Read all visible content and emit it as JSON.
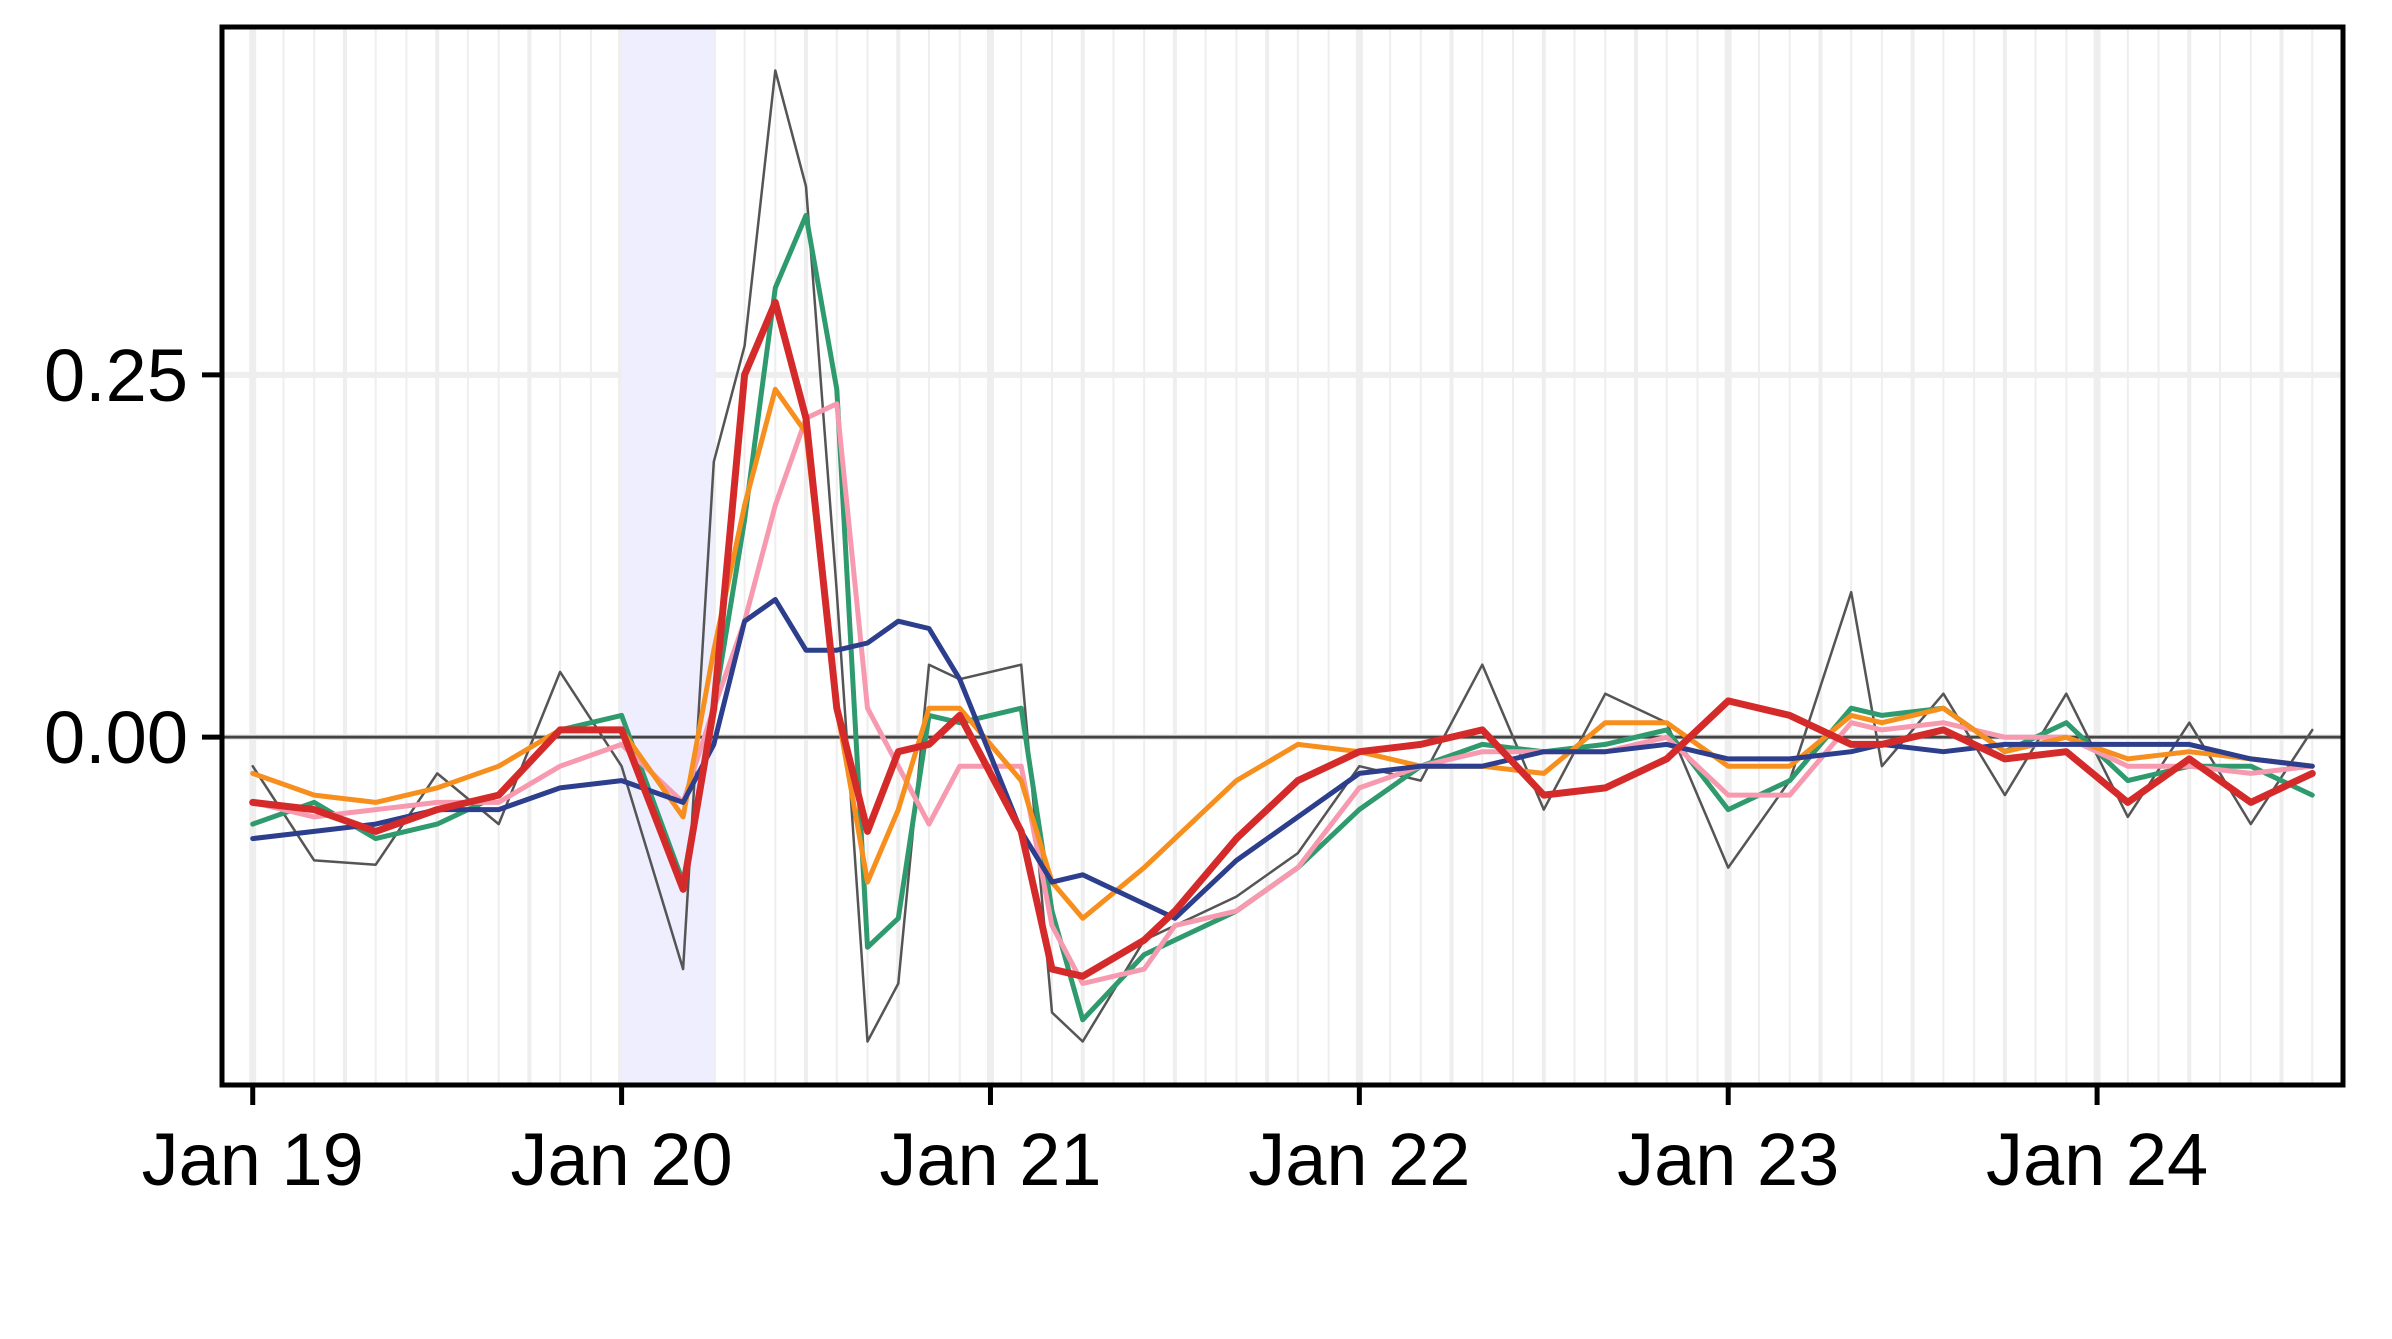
{
  "chart_data": {
    "type": "line",
    "title": "",
    "xlabel": "",
    "ylabel": "",
    "x_ticks": [
      "Jan 19",
      "Jan 20",
      "Jan 21",
      "Jan 22",
      "Jan 23",
      "Jan 24"
    ],
    "y_ticks": [
      "0.00",
      "0.25"
    ],
    "xlim": [
      "2018-12-01",
      "2024-09-01"
    ],
    "ylim": [
      -0.24,
      0.49
    ],
    "grid": true,
    "legend": "none",
    "reference_line": {
      "y": 0,
      "color": "#444444"
    },
    "shaded_region": {
      "x": [
        "2020-01-01",
        "2020-04-01"
      ],
      "color": "#eeeeff"
    },
    "series": [
      {
        "color": "#555555",
        "width": 2.5,
        "x": [
          "2019-01-01",
          "2019-03-01",
          "2019-05-01",
          "2019-07-01",
          "2019-09-01",
          "2019-11-01",
          "2020-01-01",
          "2020-03-01",
          "2020-04-01",
          "2020-05-01",
          "2020-06-01",
          "2020-07-01",
          "2020-08-01",
          "2020-09-01",
          "2020-10-01",
          "2020-11-01",
          "2020-12-01",
          "2021-02-01",
          "2021-03-01",
          "2021-04-01",
          "2021-06-01",
          "2021-07-01",
          "2021-09-01",
          "2021-11-01",
          "2022-01-01",
          "2022-03-01",
          "2022-05-01",
          "2022-07-01",
          "2022-09-01",
          "2022-11-01",
          "2023-01-01",
          "2023-03-01",
          "2023-05-01",
          "2023-06-01",
          "2023-08-01",
          "2023-10-01",
          "2023-12-01",
          "2024-02-01",
          "2024-04-01",
          "2024-06-01",
          "2024-08-01"
        ],
        "values": [
          -0.02,
          -0.085,
          -0.088,
          -0.025,
          -0.06,
          0.045,
          -0.02,
          -0.16,
          0.19,
          0.27,
          0.46,
          0.38,
          0.1,
          -0.21,
          -0.17,
          0.05,
          0.04,
          0.05,
          -0.19,
          -0.21,
          -0.14,
          -0.13,
          -0.11,
          -0.08,
          -0.02,
          -0.03,
          0.05,
          -0.05,
          0.03,
          0.01,
          -0.09,
          -0.03,
          0.1,
          -0.02,
          0.03,
          -0.04,
          0.03,
          -0.055,
          0.01,
          -0.06,
          0.005
        ]
      },
      {
        "color": "#2e9a6e",
        "width": 5,
        "x": [
          "2019-01-01",
          "2019-03-01",
          "2019-05-01",
          "2019-07-01",
          "2019-09-01",
          "2019-11-01",
          "2020-01-01",
          "2020-03-01",
          "2020-04-01",
          "2020-05-01",
          "2020-06-01",
          "2020-07-01",
          "2020-08-01",
          "2020-09-01",
          "2020-10-01",
          "2020-11-01",
          "2020-12-01",
          "2021-02-01",
          "2021-03-01",
          "2021-04-01",
          "2021-06-01",
          "2021-07-01",
          "2021-09-01",
          "2021-11-01",
          "2022-01-01",
          "2022-03-01",
          "2022-05-01",
          "2022-07-01",
          "2022-09-01",
          "2022-11-01",
          "2023-01-01",
          "2023-03-01",
          "2023-05-01",
          "2023-06-01",
          "2023-08-01",
          "2023-10-01",
          "2023-12-01",
          "2024-02-01",
          "2024-04-01",
          "2024-06-01",
          "2024-08-01"
        ],
        "values": [
          -0.06,
          -0.045,
          -0.07,
          -0.06,
          -0.04,
          0.005,
          0.015,
          -0.1,
          0.02,
          0.15,
          0.31,
          0.36,
          0.24,
          -0.145,
          -0.125,
          0.015,
          0.01,
          0.02,
          -0.12,
          -0.195,
          -0.15,
          -0.14,
          -0.12,
          -0.09,
          -0.05,
          -0.02,
          -0.005,
          -0.01,
          -0.005,
          0.005,
          -0.05,
          -0.03,
          0.02,
          0.015,
          0.02,
          -0.01,
          0.01,
          -0.03,
          -0.02,
          -0.02,
          -0.04
        ]
      },
      {
        "color": "#f79ab0",
        "width": 5,
        "x": [
          "2019-01-01",
          "2019-03-01",
          "2019-05-01",
          "2019-07-01",
          "2019-09-01",
          "2019-11-01",
          "2020-01-01",
          "2020-03-01",
          "2020-04-01",
          "2020-05-01",
          "2020-06-01",
          "2020-07-01",
          "2020-08-01",
          "2020-09-01",
          "2020-10-01",
          "2020-11-01",
          "2020-12-01",
          "2021-02-01",
          "2021-03-01",
          "2021-04-01",
          "2021-06-01",
          "2021-07-01",
          "2021-09-01",
          "2021-11-01",
          "2022-01-01",
          "2022-03-01",
          "2022-05-01",
          "2022-07-01",
          "2022-09-01",
          "2022-11-01",
          "2023-01-01",
          "2023-03-01",
          "2023-05-01",
          "2023-06-01",
          "2023-08-01",
          "2023-10-01",
          "2023-12-01",
          "2024-02-01",
          "2024-04-01",
          "2024-06-01",
          "2024-08-01"
        ],
        "values": [
          -0.045,
          -0.055,
          -0.05,
          -0.045,
          -0.045,
          -0.02,
          -0.005,
          -0.045,
          0.02,
          0.08,
          0.16,
          0.22,
          0.23,
          0.02,
          -0.02,
          -0.06,
          -0.02,
          -0.02,
          -0.13,
          -0.17,
          -0.16,
          -0.13,
          -0.12,
          -0.09,
          -0.035,
          -0.02,
          -0.01,
          -0.01,
          -0.01,
          0.0,
          -0.04,
          -0.04,
          0.01,
          0.005,
          0.01,
          0.0,
          0.0,
          -0.02,
          -0.02,
          -0.025,
          -0.02
        ]
      },
      {
        "color": "#f78f1e",
        "width": 5,
        "x": [
          "2019-01-01",
          "2019-03-01",
          "2019-05-01",
          "2019-07-01",
          "2019-09-01",
          "2019-11-01",
          "2020-01-01",
          "2020-03-01",
          "2020-04-01",
          "2020-05-01",
          "2020-06-01",
          "2020-07-01",
          "2020-08-01",
          "2020-09-01",
          "2020-10-01",
          "2020-11-01",
          "2020-12-01",
          "2021-02-01",
          "2021-03-01",
          "2021-04-01",
          "2021-06-01",
          "2021-07-01",
          "2021-09-01",
          "2021-11-01",
          "2022-01-01",
          "2022-03-01",
          "2022-05-01",
          "2022-07-01",
          "2022-09-01",
          "2022-11-01",
          "2023-01-01",
          "2023-03-01",
          "2023-05-01",
          "2023-06-01",
          "2023-08-01",
          "2023-10-01",
          "2023-12-01",
          "2024-02-01",
          "2024-04-01",
          "2024-06-01",
          "2024-08-01"
        ],
        "values": [
          -0.025,
          -0.04,
          -0.045,
          -0.035,
          -0.02,
          0.005,
          0.005,
          -0.055,
          0.06,
          0.16,
          0.24,
          0.21,
          0.02,
          -0.1,
          -0.05,
          0.02,
          0.02,
          -0.03,
          -0.1,
          -0.125,
          -0.09,
          -0.07,
          -0.03,
          -0.005,
          -0.01,
          -0.02,
          -0.02,
          -0.025,
          0.01,
          0.01,
          -0.02,
          -0.02,
          0.015,
          0.01,
          0.02,
          -0.01,
          0.0,
          -0.015,
          -0.01,
          -0.015,
          -0.02
        ]
      },
      {
        "color": "#2c3e8c",
        "width": 5,
        "x": [
          "2019-01-01",
          "2019-03-01",
          "2019-05-01",
          "2019-07-01",
          "2019-09-01",
          "2019-11-01",
          "2020-01-01",
          "2020-03-01",
          "2020-04-01",
          "2020-05-01",
          "2020-06-01",
          "2020-07-01",
          "2020-08-01",
          "2020-09-01",
          "2020-10-01",
          "2020-11-01",
          "2020-12-01",
          "2021-02-01",
          "2021-03-01",
          "2021-04-01",
          "2021-06-01",
          "2021-07-01",
          "2021-09-01",
          "2021-11-01",
          "2022-01-01",
          "2022-03-01",
          "2022-05-01",
          "2022-07-01",
          "2022-09-01",
          "2022-11-01",
          "2023-01-01",
          "2023-03-01",
          "2023-05-01",
          "2023-06-01",
          "2023-08-01",
          "2023-10-01",
          "2023-12-01",
          "2024-02-01",
          "2024-04-01",
          "2024-06-01",
          "2024-08-01"
        ],
        "values": [
          -0.07,
          -0.065,
          -0.06,
          -0.05,
          -0.05,
          -0.035,
          -0.03,
          -0.045,
          -0.005,
          0.08,
          0.095,
          0.06,
          0.06,
          0.065,
          0.08,
          0.075,
          0.04,
          -0.065,
          -0.1,
          -0.095,
          -0.115,
          -0.125,
          -0.085,
          -0.055,
          -0.025,
          -0.02,
          -0.02,
          -0.01,
          -0.01,
          -0.005,
          -0.015,
          -0.015,
          -0.01,
          -0.005,
          -0.01,
          -0.005,
          -0.005,
          -0.005,
          -0.005,
          -0.015,
          -0.02
        ]
      },
      {
        "color": "#d42a2a",
        "width": 7,
        "x": [
          "2019-01-01",
          "2019-03-01",
          "2019-05-01",
          "2019-07-01",
          "2019-09-01",
          "2019-11-01",
          "2020-01-01",
          "2020-03-01",
          "2020-04-01",
          "2020-05-01",
          "2020-06-01",
          "2020-07-01",
          "2020-08-01",
          "2020-09-01",
          "2020-10-01",
          "2020-11-01",
          "2020-12-01",
          "2021-02-01",
          "2021-03-01",
          "2021-04-01",
          "2021-06-01",
          "2021-07-01",
          "2021-09-01",
          "2021-11-01",
          "2022-01-01",
          "2022-03-01",
          "2022-05-01",
          "2022-07-01",
          "2022-09-01",
          "2022-11-01",
          "2023-01-01",
          "2023-03-01",
          "2023-05-01",
          "2023-06-01",
          "2023-08-01",
          "2023-10-01",
          "2023-12-01",
          "2024-02-01",
          "2024-04-01",
          "2024-06-01",
          "2024-08-01"
        ],
        "values": [
          -0.045,
          -0.05,
          -0.065,
          -0.05,
          -0.04,
          0.005,
          0.005,
          -0.105,
          0.02,
          0.25,
          0.3,
          0.22,
          0.02,
          -0.065,
          -0.01,
          -0.005,
          0.015,
          -0.065,
          -0.16,
          -0.165,
          -0.14,
          -0.12,
          -0.07,
          -0.03,
          -0.01,
          -0.005,
          0.005,
          -0.04,
          -0.035,
          -0.015,
          0.025,
          0.015,
          -0.005,
          -0.005,
          0.005,
          -0.015,
          -0.01,
          -0.045,
          -0.015,
          -0.045,
          -0.025
        ]
      }
    ]
  }
}
